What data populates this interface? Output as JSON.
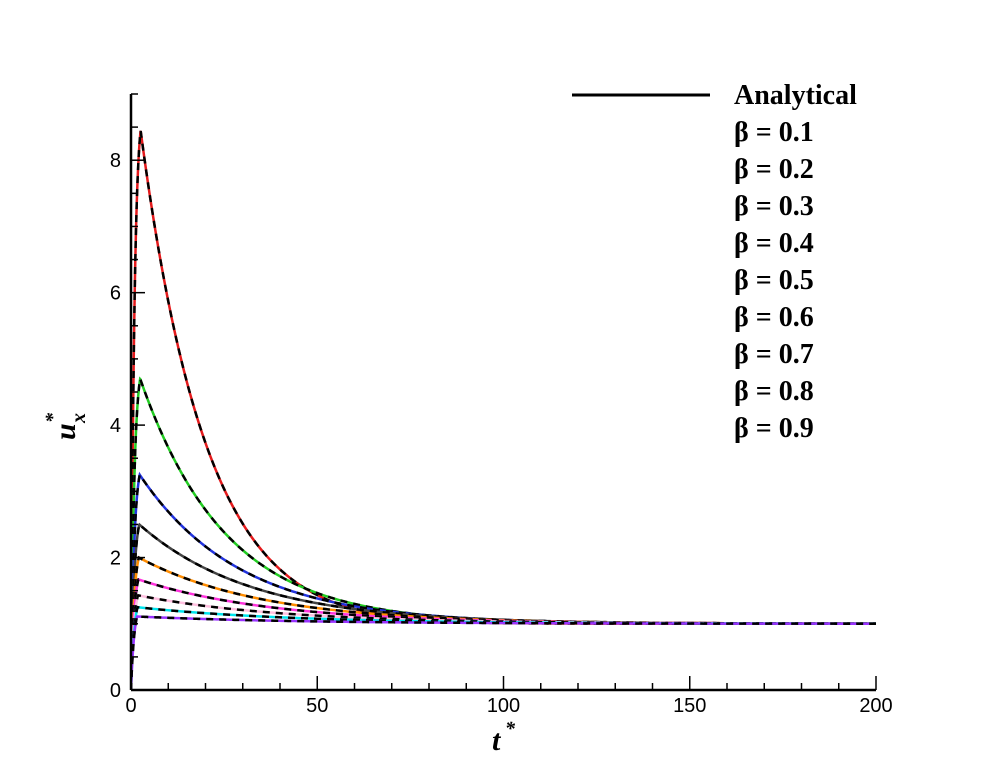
{
  "chart_data": {
    "type": "line",
    "xlabel": "t",
    "xlabel_sup": "*",
    "ylabel": "u",
    "ylabel_sub": "x",
    "ylabel_sup": "*",
    "xlim": [
      0,
      200
    ],
    "ylim": [
      0,
      9
    ],
    "x_ticks": [
      0,
      50,
      100,
      150,
      200
    ],
    "x_tick_labels": [
      "0",
      "50",
      "100",
      "150",
      "200"
    ],
    "y_ticks": [
      0,
      2,
      4,
      6,
      8
    ],
    "y_tick_labels": [
      "0",
      "2",
      "4",
      "6",
      "8"
    ],
    "grid": false,
    "legend_position": "top-right",
    "analytical": {
      "name": "Analytical",
      "color": "#000000",
      "style": "solid"
    },
    "line_style_numeric": "dashed",
    "series": [
      {
        "name": "β = 0.1",
        "color": "#e41a1c",
        "beta": 0.1,
        "peak": 8.45
      },
      {
        "name": "β = 0.2",
        "color": "#22cc22",
        "beta": 0.2,
        "peak": 4.7
      },
      {
        "name": "β = 0.3",
        "color": "#2233dd",
        "beta": 0.3,
        "peak": 3.25
      },
      {
        "name": "β = 0.4",
        "color": "#444444",
        "beta": 0.4,
        "peak": 2.5
      },
      {
        "name": "β = 0.5",
        "color": "#ff8c00",
        "beta": 0.5,
        "peak": 2.0
      },
      {
        "name": "β = 0.6",
        "color": "#ff33dd",
        "beta": 0.6,
        "peak": 1.67
      },
      {
        "name": "β = 0.7",
        "color": "#ffc0e0",
        "beta": 0.7,
        "peak": 1.43
      },
      {
        "name": "β = 0.8",
        "color": "#00e5ee",
        "beta": 0.8,
        "peak": 1.25
      },
      {
        "name": "β = 0.9",
        "color": "#9933ff",
        "beta": 0.9,
        "peak": 1.11
      }
    ]
  }
}
